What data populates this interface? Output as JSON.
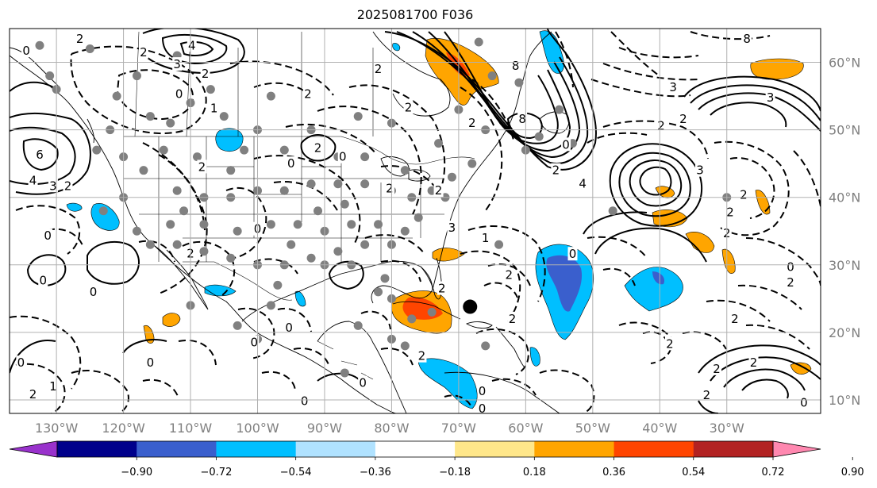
{
  "title": "2025081700 F036",
  "map": {
    "lon_range": [
      -137,
      -16
    ],
    "lat_range": [
      8,
      65
    ],
    "lon_labels": [
      "130°W",
      "120°W",
      "110°W",
      "100°W",
      "90°W",
      "80°W",
      "70°W",
      "60°W",
      "50°W",
      "40°W",
      "30°W"
    ],
    "lon_values": [
      -130,
      -120,
      -110,
      -100,
      -90,
      -80,
      -70,
      -60,
      -50,
      -40,
      -30
    ],
    "lat_labels": [
      "10°N",
      "20°N",
      "30°N",
      "40°N",
      "50°N",
      "60°N"
    ],
    "lat_values": [
      10,
      20,
      30,
      40,
      50,
      60
    ],
    "storm_marker": {
      "lon": -68.3,
      "lat": 23.8,
      "color": "#000000"
    },
    "station_color": "#808080",
    "stations": [
      [
        -132.5,
        62.5
      ],
      [
        -125,
        62
      ],
      [
        -112,
        61
      ],
      [
        -118,
        58
      ],
      [
        -107,
        56
      ],
      [
        -110,
        54
      ],
      [
        -98,
        55
      ],
      [
        -105,
        52
      ],
      [
        -113,
        51
      ],
      [
        -122,
        50
      ],
      [
        -100,
        50
      ],
      [
        -92,
        50
      ],
      [
        -85,
        52
      ],
      [
        -80,
        51
      ],
      [
        -73,
        48
      ],
      [
        -68,
        45
      ],
      [
        -71,
        43
      ],
      [
        -74,
        41
      ],
      [
        -77,
        40
      ],
      [
        -80,
        41
      ],
      [
        -84,
        42
      ],
      [
        -88,
        42
      ],
      [
        -92,
        42
      ],
      [
        -96,
        41
      ],
      [
        -100,
        41
      ],
      [
        -104,
        40
      ],
      [
        -108,
        40
      ],
      [
        -112,
        41
      ],
      [
        -117,
        44
      ],
      [
        -120,
        40
      ],
      [
        -123,
        38
      ],
      [
        -118,
        35
      ],
      [
        -113,
        36
      ],
      [
        -108,
        36
      ],
      [
        -103,
        35
      ],
      [
        -98,
        36
      ],
      [
        -94,
        36
      ],
      [
        -90,
        35
      ],
      [
        -86,
        36
      ],
      [
        -82,
        36
      ],
      [
        -78,
        35
      ],
      [
        -76,
        37
      ],
      [
        -80,
        33
      ],
      [
        -84,
        33
      ],
      [
        -88,
        32
      ],
      [
        -92,
        31
      ],
      [
        -96,
        30
      ],
      [
        -100,
        30
      ],
      [
        -104,
        31
      ],
      [
        -108,
        32
      ],
      [
        -112,
        33
      ],
      [
        -116,
        33
      ],
      [
        -97,
        27
      ],
      [
        -90,
        30
      ],
      [
        -86,
        30
      ],
      [
        -81,
        28
      ],
      [
        -82,
        26
      ],
      [
        -80,
        25
      ],
      [
        -77,
        22
      ],
      [
        -80,
        19
      ],
      [
        -85,
        21
      ],
      [
        -74,
        23
      ],
      [
        -78,
        18
      ],
      [
        -98,
        24
      ],
      [
        -103,
        21
      ],
      [
        -100,
        19
      ],
      [
        -110,
        24
      ],
      [
        -87,
        14
      ],
      [
        -66,
        18
      ],
      [
        -64,
        33
      ],
      [
        -60,
        47
      ],
      [
        -66,
        50
      ],
      [
        -70,
        53
      ],
      [
        -61,
        57
      ],
      [
        -55,
        53
      ],
      [
        -67,
        63
      ],
      [
        -65,
        58
      ],
      [
        -58,
        49
      ],
      [
        -53,
        48
      ],
      [
        -47,
        38
      ],
      [
        -30,
        40
      ],
      [
        -96,
        47
      ],
      [
        -102,
        47
      ],
      [
        -109,
        46
      ],
      [
        -114,
        47
      ],
      [
        -120,
        46
      ],
      [
        -124,
        47
      ],
      [
        -88,
        46
      ],
      [
        -84,
        46
      ],
      [
        -78,
        44
      ],
      [
        -111,
        38
      ],
      [
        -104,
        44
      ],
      [
        -91,
        38
      ],
      [
        -72,
        40
      ],
      [
        -95,
        33
      ],
      [
        -87,
        39
      ],
      [
        -131,
        58
      ],
      [
        -121,
        55
      ],
      [
        -116,
        52
      ],
      [
        -130,
        56
      ]
    ]
  },
  "colorbar": {
    "ticks": [
      "−0.90",
      "−0.72",
      "−0.54",
      "−0.36",
      "−0.18",
      "0.18",
      "0.36",
      "0.54",
      "0.72",
      "0.90"
    ],
    "colors": [
      "#9932cc",
      "#00008b",
      "#3a5fcd",
      "#00bfff",
      "#b0e2ff",
      "#ffffff",
      "#ffe78a",
      "#ffa500",
      "#ff4500",
      "#b22222",
      "#ff88b0"
    ]
  },
  "contour_labels": [
    {
      "t": "2",
      "lon": -126.5,
      "lat": 63.5
    },
    {
      "t": "0",
      "lon": -134.5,
      "lat": 61.7
    },
    {
      "t": "2",
      "lon": -117,
      "lat": 61.5
    },
    {
      "t": "4",
      "lon": -109.8,
      "lat": 62.5
    },
    {
      "t": "3",
      "lon": -112,
      "lat": 59.7
    },
    {
      "t": "2",
      "lon": -107.8,
      "lat": 58.3
    },
    {
      "t": "0",
      "lon": -111.7,
      "lat": 55.3
    },
    {
      "t": "1",
      "lon": -106.5,
      "lat": 53.2
    },
    {
      "t": "2",
      "lon": -92.5,
      "lat": 55.3
    },
    {
      "t": "6",
      "lon": -132.5,
      "lat": 46.3
    },
    {
      "t": "4",
      "lon": -133.5,
      "lat": 42.5
    },
    {
      "t": "3",
      "lon": -130.5,
      "lat": 41.7
    },
    {
      "t": "2",
      "lon": -128.3,
      "lat": 41.7
    },
    {
      "t": "0",
      "lon": -131.3,
      "lat": 34.3
    },
    {
      "t": "2",
      "lon": -108.3,
      "lat": 44.5
    },
    {
      "t": "0",
      "lon": -100,
      "lat": 35.3
    },
    {
      "t": "2",
      "lon": -110,
      "lat": 31.7
    },
    {
      "t": "2",
      "lon": -91,
      "lat": 47.3
    },
    {
      "t": "0",
      "lon": -87.3,
      "lat": 46
    },
    {
      "t": "2",
      "lon": -73,
      "lat": 41
    },
    {
      "t": "2",
      "lon": -80.3,
      "lat": 41.3
    },
    {
      "t": "2",
      "lon": -77.5,
      "lat": 53.3
    },
    {
      "t": "2",
      "lon": -82,
      "lat": 59
    },
    {
      "t": "8",
      "lon": -61.5,
      "lat": 59.5
    },
    {
      "t": "8",
      "lon": -60.5,
      "lat": 51.6
    },
    {
      "t": "0",
      "lon": -54,
      "lat": 47.8
    },
    {
      "t": "2",
      "lon": -68,
      "lat": 51
    },
    {
      "t": "4",
      "lon": -51.5,
      "lat": 42
    },
    {
      "t": "2",
      "lon": -55.5,
      "lat": 44
    },
    {
      "t": "0",
      "lon": -53,
      "lat": 31.6
    },
    {
      "t": "3",
      "lon": -38,
      "lat": 56.3
    },
    {
      "t": "2",
      "lon": -39.8,
      "lat": 50.6
    },
    {
      "t": "2",
      "lon": -36.5,
      "lat": 51.6
    },
    {
      "t": "3",
      "lon": -34,
      "lat": 44
    },
    {
      "t": "2",
      "lon": -27.5,
      "lat": 40.4
    },
    {
      "t": "2",
      "lon": -29.5,
      "lat": 37.8
    },
    {
      "t": "2",
      "lon": -30,
      "lat": 34.7
    },
    {
      "t": "0",
      "lon": -20.5,
      "lat": 29.7
    },
    {
      "t": "2",
      "lon": -20.5,
      "lat": 27.4
    },
    {
      "t": "2",
      "lon": -28.8,
      "lat": 22
    },
    {
      "t": "8",
      "lon": -27,
      "lat": 63.5
    },
    {
      "t": "3",
      "lon": -23.5,
      "lat": 54.8
    },
    {
      "t": "1",
      "lon": -66,
      "lat": 34
    },
    {
      "t": "3",
      "lon": -71,
      "lat": 35.5
    },
    {
      "t": "2",
      "lon": -62.5,
      "lat": 28.5
    },
    {
      "t": "2",
      "lon": -72.5,
      "lat": 26.5
    },
    {
      "t": "2",
      "lon": -62,
      "lat": 22
    },
    {
      "t": "0",
      "lon": -116,
      "lat": 15.5
    },
    {
      "t": "0",
      "lon": -100.5,
      "lat": 18.5
    },
    {
      "t": "0",
      "lon": -95.3,
      "lat": 20.7
    },
    {
      "t": "0",
      "lon": -84.3,
      "lat": 12.5
    },
    {
      "t": "0",
      "lon": -93,
      "lat": 9.8
    },
    {
      "t": "0",
      "lon": -66.5,
      "lat": 8.7
    },
    {
      "t": "0",
      "lon": -18.5,
      "lat": 9.6
    },
    {
      "t": "0",
      "lon": -135.3,
      "lat": 15.5
    },
    {
      "t": "0",
      "lon": -124.5,
      "lat": 26
    },
    {
      "t": "0",
      "lon": -132,
      "lat": 27.7
    },
    {
      "t": "2",
      "lon": -133.5,
      "lat": 10.8
    },
    {
      "t": "1",
      "lon": -130.5,
      "lat": 12
    },
    {
      "t": "0",
      "lon": -66.5,
      "lat": 11.3
    },
    {
      "t": "2",
      "lon": -75.5,
      "lat": 16.5
    },
    {
      "t": "2",
      "lon": -38.5,
      "lat": 18.3
    },
    {
      "t": "2",
      "lon": -31.5,
      "lat": 14.6
    },
    {
      "t": "2",
      "lon": -33,
      "lat": 10.7
    },
    {
      "t": "2",
      "lon": -26,
      "lat": 15.5
    },
    {
      "t": "0",
      "lon": -95,
      "lat": 45
    }
  ]
}
